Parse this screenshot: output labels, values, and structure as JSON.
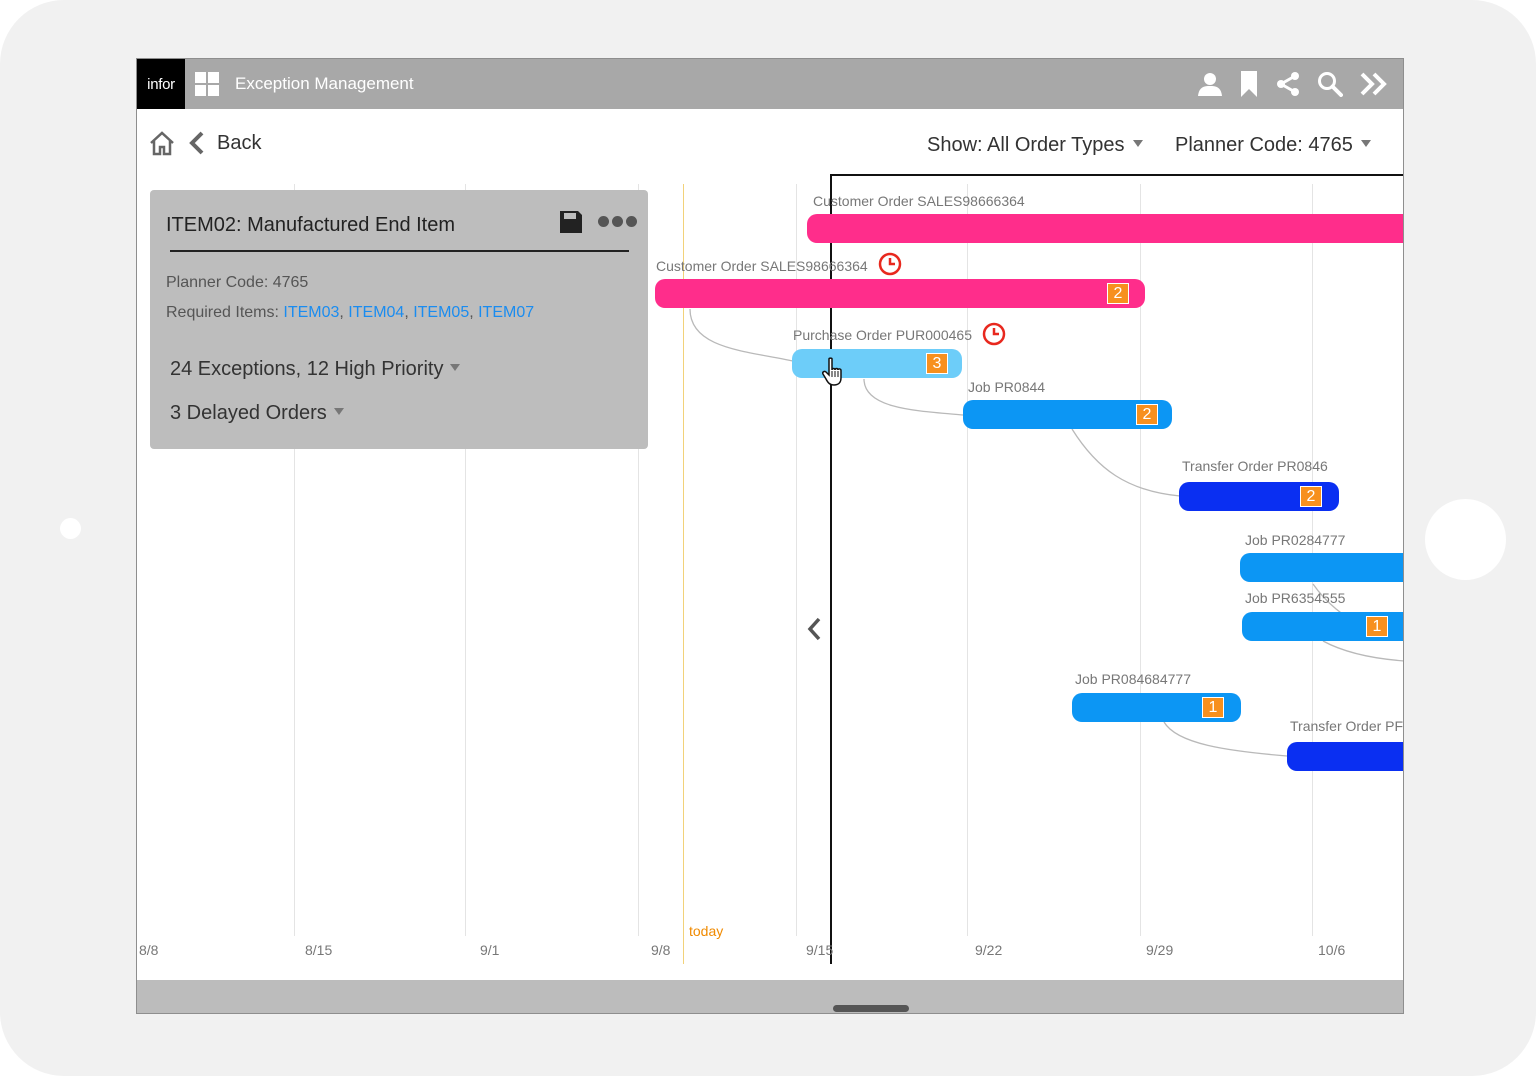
{
  "app": {
    "logo": "infor",
    "title": "Exception Management"
  },
  "header": {
    "back_label": "Back",
    "show_filter": "Show: All Order Types",
    "planner_filter": "Planner Code: 4765"
  },
  "item_card": {
    "title": "ITEM02: Manufactured End Item",
    "planner_code": "Planner Code: 4765",
    "required_label": "Required Items: ",
    "required_items": [
      "ITEM03",
      "ITEM04",
      "ITEM05",
      "ITEM07"
    ],
    "separator": ", ",
    "exceptions": "24 Exceptions, 12 High Priority",
    "delayed": "3 Delayed Orders"
  },
  "timeline": {
    "dates": [
      "8/8",
      "8/15",
      "9/1",
      "9/8",
      "9/15",
      "9/22",
      "9/29",
      "10/6"
    ],
    "today_label": "today",
    "orders": [
      {
        "label": "Customer Order SALES98666364",
        "type": "customer",
        "badge": "",
        "late": false
      },
      {
        "label": "Customer Order SALES98666364",
        "type": "customer",
        "badge": "2",
        "late": true
      },
      {
        "label": "Purchase Order PUR000465",
        "type": "purchase",
        "badge": "3",
        "late": true
      },
      {
        "label": "Job PR0844",
        "type": "job",
        "badge": "2",
        "late": false
      },
      {
        "label": "Transfer Order PR0846",
        "type": "transfer",
        "badge": "2",
        "late": false
      },
      {
        "label": "Job PR0284777",
        "type": "job",
        "badge": "",
        "late": false
      },
      {
        "label": "Job PR6354555",
        "type": "job",
        "badge": "1",
        "late": false
      },
      {
        "label": "Job PR084684777",
        "type": "job",
        "badge": "1",
        "late": false
      },
      {
        "label": "Transfer Order PF",
        "type": "transfer",
        "badge": "",
        "late": false
      }
    ]
  },
  "colors": {
    "customer": "#ff2d8b",
    "purchase": "#6dcdf9",
    "job": "#0c96f4",
    "transfer": "#0a2ff2",
    "badge": "#f7901e",
    "late": "#e8281e",
    "today": "#f08a00"
  },
  "icons": [
    "grid-icon",
    "user-icon",
    "bookmark-icon",
    "share-icon",
    "search-icon",
    "double-chevron-icon",
    "home-icon",
    "back-chevron-icon",
    "save-icon",
    "more-icon",
    "clock-icon",
    "collapse-chevron-icon",
    "hand-cursor-icon"
  ]
}
